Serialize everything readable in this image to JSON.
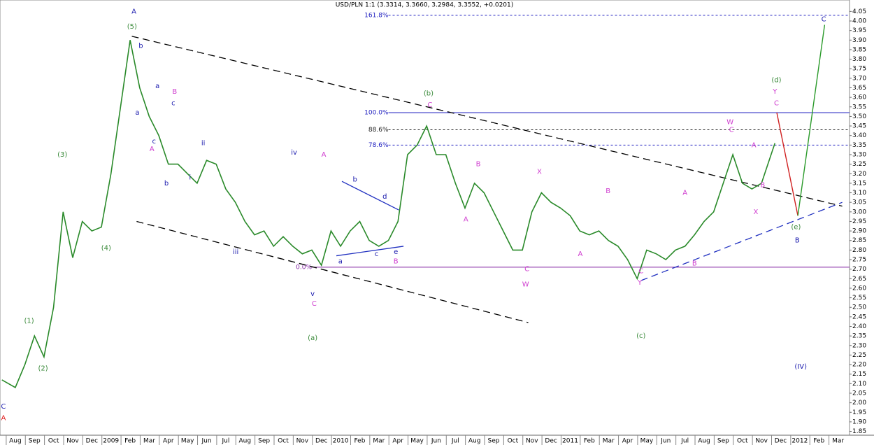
{
  "chart_data": {
    "type": "line",
    "title": "USD/PLN 1:1 (3.3314, 3.3660, 3.2984, 3.3552, +0.0201)",
    "color": "#2a8a2a",
    "xlim": [
      -0.8,
      43.6
    ],
    "ylim": [
      1.83,
      4.11
    ],
    "xticks": [
      {
        "value": 0,
        "label": "Aug"
      },
      {
        "value": 1,
        "label": "Sep"
      },
      {
        "value": 2,
        "label": "Oct"
      },
      {
        "value": 3,
        "label": "Nov"
      },
      {
        "value": 4,
        "label": "Dec"
      },
      {
        "value": 5,
        "label": "2009"
      },
      {
        "value": 6,
        "label": "Feb"
      },
      {
        "value": 7,
        "label": "Mar"
      },
      {
        "value": 8,
        "label": "Apr"
      },
      {
        "value": 9,
        "label": "May"
      },
      {
        "value": 10,
        "label": "Jun"
      },
      {
        "value": 11,
        "label": "Jul"
      },
      {
        "value": 12,
        "label": "Aug"
      },
      {
        "value": 13,
        "label": "Sep"
      },
      {
        "value": 14,
        "label": "Oct"
      },
      {
        "value": 15,
        "label": "Nov"
      },
      {
        "value": 16,
        "label": "Dec"
      },
      {
        "value": 17,
        "label": "2010"
      },
      {
        "value": 18,
        "label": "Feb"
      },
      {
        "value": 19,
        "label": "Mar"
      },
      {
        "value": 20,
        "label": "Apr"
      },
      {
        "value": 21,
        "label": "May"
      },
      {
        "value": 22,
        "label": "Jun"
      },
      {
        "value": 23,
        "label": "Jul"
      },
      {
        "value": 24,
        "label": "Aug"
      },
      {
        "value": 25,
        "label": "Sep"
      },
      {
        "value": 26,
        "label": "Oct"
      },
      {
        "value": 27,
        "label": "Nov"
      },
      {
        "value": 28,
        "label": "Dec"
      },
      {
        "value": 29,
        "label": "2011"
      },
      {
        "value": 30,
        "label": "Feb"
      },
      {
        "value": 31,
        "label": "Mar"
      },
      {
        "value": 32,
        "label": "Apr"
      },
      {
        "value": 33,
        "label": "May"
      },
      {
        "value": 34,
        "label": "Jun"
      },
      {
        "value": 35,
        "label": "Jul"
      },
      {
        "value": 36,
        "label": "Aug"
      },
      {
        "value": 37,
        "label": "Sep"
      },
      {
        "value": 38,
        "label": "Oct"
      },
      {
        "value": 39,
        "label": "Nov"
      },
      {
        "value": 40,
        "label": "Dec"
      },
      {
        "value": 41,
        "label": "2012"
      },
      {
        "value": 42,
        "label": "Feb"
      },
      {
        "value": 43,
        "label": "Mar"
      }
    ],
    "yticks": [
      4.05,
      {
        "value": 4,
        "label": "4.00"
      },
      3.95,
      {
        "value": 3.9,
        "label": "3.90"
      },
      3.85,
      {
        "value": 3.8,
        "label": "3.80"
      },
      3.75,
      {
        "value": 3.7,
        "label": "3.70"
      },
      3.65,
      {
        "value": 3.6,
        "label": "3.60"
      },
      3.55,
      {
        "value": 3.5,
        "label": "3.50"
      },
      3.45,
      {
        "value": 3.4,
        "label": "3.40"
      },
      3.35,
      {
        "value": 3.3,
        "label": "3.30"
      },
      3.25,
      {
        "value": 3.2,
        "label": "3.20"
      },
      3.15,
      {
        "value": 3.1,
        "label": "3.10"
      },
      3.05,
      {
        "value": 3,
        "label": "3.00"
      },
      2.95,
      {
        "value": 2.9,
        "label": "2.90"
      },
      2.85,
      {
        "value": 2.8,
        "label": "2.80"
      },
      2.75,
      {
        "value": 2.7,
        "label": "2.70"
      },
      2.65,
      {
        "value": 2.6,
        "label": "2.60"
      },
      2.55,
      {
        "value": 2.5,
        "label": "2.50"
      },
      2.45,
      {
        "value": 2.4,
        "label": "2.40"
      },
      2.35,
      {
        "value": 2.3,
        "label": "2.30"
      },
      2.25,
      {
        "value": 2.2,
        "label": "2.20"
      },
      2.15,
      {
        "value": 2.1,
        "label": "2.10"
      },
      2.05,
      {
        "value": 2,
        "label": "2.00"
      },
      1.95,
      {
        "value": 1.9,
        "label": "1.90"
      },
      1.85
    ],
    "x": [
      -0.7,
      0,
      0.5,
      1,
      1.5,
      2,
      2.5,
      3,
      3.5,
      4,
      4.5,
      5,
      5.5,
      6,
      6.5,
      7,
      7.5,
      8,
      8.5,
      9,
      9.5,
      10,
      10.5,
      11,
      11.5,
      12,
      12.5,
      13,
      13.5,
      14,
      14.5,
      15,
      15.5,
      16,
      16.5,
      17,
      17.5,
      18,
      18.5,
      19,
      19.5,
      20,
      20.5,
      21,
      21.5,
      22,
      22.5,
      23,
      23.5,
      24,
      24.5,
      25,
      25.5,
      26,
      26.5,
      27,
      27.5,
      28,
      28.5,
      29,
      29.5,
      30,
      30.5,
      31,
      31.5,
      32,
      32.5,
      33,
      33.5,
      34,
      34.5,
      35,
      35.5,
      36,
      36.5,
      37,
      37.5,
      38,
      38.5,
      39,
      39.5,
      39.7
    ],
    "values": [
      2.12,
      2.08,
      2.2,
      2.35,
      2.24,
      2.5,
      3.0,
      2.76,
      2.95,
      2.9,
      2.92,
      3.2,
      3.55,
      3.9,
      3.65,
      3.5,
      3.4,
      3.25,
      3.25,
      3.2,
      3.15,
      3.27,
      3.25,
      3.12,
      3.05,
      2.95,
      2.88,
      2.9,
      2.82,
      2.87,
      2.82,
      2.78,
      2.8,
      2.72,
      2.9,
      2.82,
      2.9,
      2.95,
      2.85,
      2.82,
      2.85,
      2.95,
      3.3,
      3.35,
      3.45,
      3.3,
      3.3,
      3.15,
      3.02,
      3.15,
      3.1,
      3.0,
      2.9,
      2.8,
      2.8,
      3.0,
      3.1,
      3.05,
      3.02,
      2.98,
      2.9,
      2.88,
      2.9,
      2.85,
      2.82,
      2.75,
      2.65,
      2.8,
      2.78,
      2.75,
      2.8,
      2.82,
      2.88,
      2.95,
      3.0,
      3.15,
      3.3,
      3.15,
      3.12,
      3.15,
      3.3,
      3.36
    ],
    "projection": [
      {
        "color": "#d02020",
        "x": [
          39.8,
          40.9
        ],
        "values": [
          3.52,
          2.98
        ]
      },
      {
        "color": "#2a9a2a",
        "x": [
          40.9,
          42.3
        ],
        "values": [
          2.98,
          3.98
        ]
      }
    ],
    "levels": [
      {
        "label": "161.8%",
        "value": 4.03,
        "start": 19.5,
        "color": "#2020c0",
        "dash": true
      },
      {
        "label": "100.0%",
        "value": 3.52,
        "start": 19.5,
        "color": "#2020c0",
        "dash": false
      },
      {
        "label": "88.6%",
        "value": 3.43,
        "start": 19.5,
        "color": "#202020",
        "dash": true
      },
      {
        "label": "78.6%",
        "value": 3.35,
        "start": 19.5,
        "color": "#2020c0",
        "dash": true
      },
      {
        "label": "0.0%",
        "value": 2.71,
        "start": 15.5,
        "color": "#8020a0",
        "dash": false
      }
    ],
    "trend_lines": [
      {
        "x": [
          6.09,
          43.22
        ],
        "y": [
          3.92,
          3.03
        ],
        "color": "#000000",
        "dash": true
      },
      {
        "x": [
          6.34,
          26.81
        ],
        "y": [
          2.95,
          2.42
        ],
        "color": "#000000",
        "dash": true
      },
      {
        "x": [
          32.7,
          43.22
        ],
        "y": [
          2.64,
          3.05
        ],
        "color": "#2030c0",
        "dash": true
      },
      {
        "x": [
          17.07,
          20.04
        ],
        "y": [
          3.16,
          3.01
        ],
        "color": "#2030c0",
        "dash": false
      },
      {
        "x": [
          16.78,
          20.29
        ],
        "y": [
          2.77,
          2.82
        ],
        "color": "#2030c0",
        "dash": false
      }
    ],
    "annotations": [
      {
        "text": "A",
        "x": 6.2,
        "y": 4.05,
        "color": "#2020b0"
      },
      {
        "text": "(5)",
        "x": 6.1,
        "y": 3.97,
        "color": "#3a8a3a"
      },
      {
        "text": "b",
        "x": 6.56,
        "y": 3.87,
        "color": "#2020b0"
      },
      {
        "text": "a",
        "x": 7.43,
        "y": 3.66,
        "color": "#2020b0"
      },
      {
        "text": "B",
        "x": 8.33,
        "y": 3.63,
        "color": "#d040d0"
      },
      {
        "text": "c",
        "x": 8.26,
        "y": 3.57,
        "color": "#2020b0"
      },
      {
        "text": "a",
        "x": 6.38,
        "y": 3.52,
        "color": "#2020b0"
      },
      {
        "text": "c",
        "x": 7.25,
        "y": 3.37,
        "color": "#2020b0"
      },
      {
        "text": "A",
        "x": 7.14,
        "y": 3.33,
        "color": "#d040d0"
      },
      {
        "text": "b",
        "x": 7.9,
        "y": 3.15,
        "color": "#2020b0"
      },
      {
        "text": "ii",
        "x": 9.82,
        "y": 3.36,
        "color": "#2020b0"
      },
      {
        "text": "i",
        "x": 9.13,
        "y": 3.18,
        "color": "#2020b0"
      },
      {
        "text": "iv",
        "x": 14.57,
        "y": 3.31,
        "color": "#2020b0"
      },
      {
        "text": "iii",
        "x": 11.52,
        "y": 2.79,
        "color": "#2020b0"
      },
      {
        "text": "A",
        "x": 16.12,
        "y": 3.3,
        "color": "#d040d0"
      },
      {
        "text": "b",
        "x": 17.75,
        "y": 3.17,
        "color": "#2020b0"
      },
      {
        "text": "d",
        "x": 19.31,
        "y": 3.08,
        "color": "#2020b0"
      },
      {
        "text": "a",
        "x": 16.99,
        "y": 2.74,
        "color": "#2020b0"
      },
      {
        "text": "c",
        "x": 18.88,
        "y": 2.78,
        "color": "#2020b0"
      },
      {
        "text": "e",
        "x": 19.89,
        "y": 2.79,
        "color": "#2020b0"
      },
      {
        "text": "B",
        "x": 19.89,
        "y": 2.74,
        "color": "#d040d0"
      },
      {
        "text": "v",
        "x": 15.54,
        "y": 2.57,
        "color": "#2020b0"
      },
      {
        "text": "C",
        "x": 15.62,
        "y": 2.52,
        "color": "#d040d0"
      },
      {
        "text": "(a)",
        "x": 15.54,
        "y": 2.34,
        "color": "#3a8a3a"
      },
      {
        "text": "(b)",
        "x": 21.6,
        "y": 3.62,
        "color": "#3a8a3a"
      },
      {
        "text": "C",
        "x": 21.67,
        "y": 3.56,
        "color": "#d040d0"
      },
      {
        "text": "B",
        "x": 24.2,
        "y": 3.25,
        "color": "#d040d0"
      },
      {
        "text": "A",
        "x": 23.55,
        "y": 2.96,
        "color": "#d040d0"
      },
      {
        "text": "X",
        "x": 27.39,
        "y": 3.21,
        "color": "#d040d0"
      },
      {
        "text": "C",
        "x": 26.74,
        "y": 2.7,
        "color": "#d040d0"
      },
      {
        "text": "W",
        "x": 26.67,
        "y": 2.62,
        "color": "#d040d0"
      },
      {
        "text": "B",
        "x": 30.98,
        "y": 3.11,
        "color": "#d040d0"
      },
      {
        "text": "A",
        "x": 29.53,
        "y": 2.78,
        "color": "#d040d0"
      },
      {
        "text": "A",
        "x": 35.0,
        "y": 3.1,
        "color": "#d040d0"
      },
      {
        "text": "B",
        "x": 35.5,
        "y": 2.73,
        "color": "#d040d0"
      },
      {
        "text": "C",
        "x": 32.7,
        "y": 2.69,
        "color": "#d040d0"
      },
      {
        "text": "Y",
        "x": 32.64,
        "y": 2.63,
        "color": "#d040d0"
      },
      {
        "text": "(c)",
        "x": 32.7,
        "y": 2.35,
        "color": "#3a8a3a"
      },
      {
        "text": "W",
        "x": 37.36,
        "y": 3.47,
        "color": "#d040d0"
      },
      {
        "text": "C",
        "x": 37.43,
        "y": 3.43,
        "color": "#d040d0"
      },
      {
        "text": "A",
        "x": 38.6,
        "y": 3.35,
        "color": "#d040d0"
      },
      {
        "text": "B",
        "x": 39.06,
        "y": 3.14,
        "color": "#d040d0"
      },
      {
        "text": "X",
        "x": 38.7,
        "y": 3.0,
        "color": "#d040d0"
      },
      {
        "text": "(d)",
        "x": 39.78,
        "y": 3.69,
        "color": "#3a8a3a"
      },
      {
        "text": "Y",
        "x": 39.7,
        "y": 3.63,
        "color": "#d040d0"
      },
      {
        "text": "C",
        "x": 39.78,
        "y": 3.57,
        "color": "#d040d0"
      },
      {
        "text": "(e)",
        "x": 40.8,
        "y": 2.92,
        "color": "#3a8a3a"
      },
      {
        "text": "B",
        "x": 40.87,
        "y": 2.85,
        "color": "#2020b0"
      },
      {
        "text": "C",
        "x": 42.25,
        "y": 4.01,
        "color": "#2020b0"
      },
      {
        "text": "(IV)",
        "x": 41.05,
        "y": 2.19,
        "color": "#2020b0"
      },
      {
        "text": "(1)",
        "x": 0.72,
        "y": 2.43,
        "color": "#3a8a3a"
      },
      {
        "text": "(2)",
        "x": 1.45,
        "y": 2.18,
        "color": "#3a8a3a"
      },
      {
        "text": "(3)",
        "x": 2.46,
        "y": 3.3,
        "color": "#3a8a3a"
      },
      {
        "text": "(4)",
        "x": 4.75,
        "y": 2.81,
        "color": "#3a8a3a"
      },
      {
        "text": "C",
        "x": -0.62,
        "y": 1.98,
        "color": "#2020b0"
      },
      {
        "text": "A",
        "x": -0.62,
        "y": 1.92,
        "color": "#e02020"
      }
    ]
  }
}
